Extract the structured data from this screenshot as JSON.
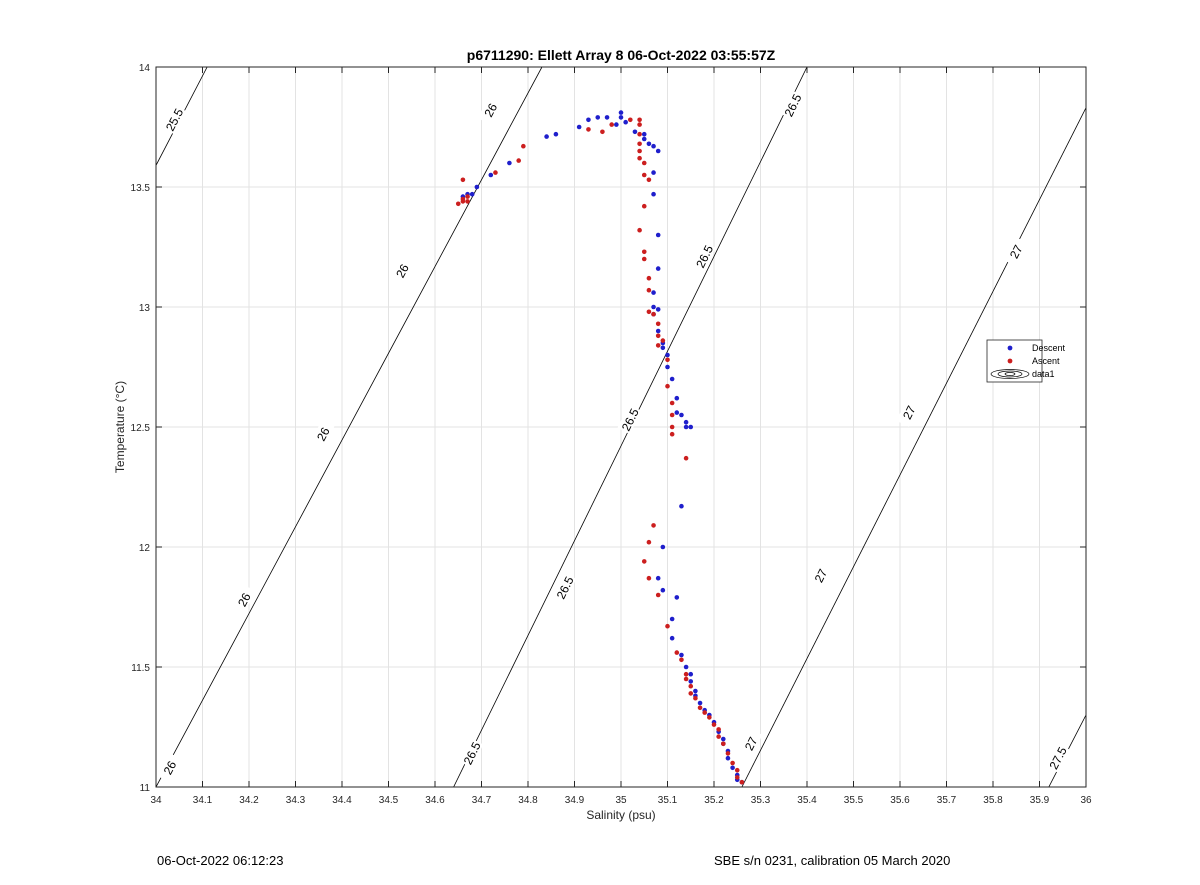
{
  "chart_data": {
    "type": "scatter",
    "title": "p6711290: Ellett Array 8 06-Oct-2022 03:55:57Z",
    "xlabel": "Salinity (psu)",
    "ylabel": "Temperature (°C)",
    "xlim": [
      34,
      36
    ],
    "ylim": [
      11,
      14
    ],
    "grid": true,
    "legend_placement": "right",
    "x_ticks": [
      "34",
      "34.1",
      "34.2",
      "34.3",
      "34.4",
      "34.5",
      "34.6",
      "34.7",
      "34.8",
      "34.9",
      "35",
      "35.1",
      "35.2",
      "35.3",
      "35.4",
      "35.5",
      "35.6",
      "35.7",
      "35.8",
      "35.9",
      "36"
    ],
    "y_ticks": [
      "11",
      "11.5",
      "12",
      "12.5",
      "13",
      "13.5",
      "14"
    ],
    "legend": [
      {
        "label": "Descent",
        "color": "#1f1fcc",
        "marker": "dot"
      },
      {
        "label": "Ascent",
        "color": "#cc1f1f",
        "marker": "dot"
      },
      {
        "label": "data1",
        "color": "#000000",
        "marker": "contour"
      }
    ],
    "contours": [
      {
        "label": "25.5",
        "points": [
          [
            34.0,
            13.59
          ],
          [
            34.11,
            14.0
          ]
        ],
        "label_positions": [
          [
            34.04,
            13.78
          ]
        ]
      },
      {
        "label": "26",
        "points": [
          [
            34.0,
            11.0
          ],
          [
            34.83,
            14.0
          ]
        ],
        "label_positions": [
          [
            34.03,
            11.08
          ],
          [
            34.19,
            11.78
          ],
          [
            34.36,
            12.47
          ],
          [
            34.53,
            13.15
          ],
          [
            34.72,
            13.82
          ]
        ]
      },
      {
        "label": "26.5",
        "points": [
          [
            34.64,
            11.0
          ],
          [
            35.4,
            14.0
          ]
        ],
        "label_positions": [
          [
            34.68,
            11.14
          ],
          [
            34.88,
            11.83
          ],
          [
            35.02,
            12.53
          ],
          [
            35.18,
            13.21
          ],
          [
            35.37,
            13.84
          ]
        ]
      },
      {
        "label": "27",
        "points": [
          [
            35.26,
            11.0
          ],
          [
            36.0,
            13.83
          ]
        ],
        "label_positions": [
          [
            35.28,
            11.18
          ],
          [
            35.43,
            11.88
          ],
          [
            35.62,
            12.56
          ],
          [
            35.85,
            13.23
          ]
        ]
      },
      {
        "label": "27.5",
        "points": [
          [
            35.92,
            11.0
          ],
          [
            36.0,
            11.3
          ]
        ],
        "label_positions": [
          [
            35.94,
            11.12
          ]
        ]
      }
    ],
    "series": [
      {
        "name": "Descent",
        "color": "#1f1fcc",
        "points": [
          [
            34.66,
            13.46
          ],
          [
            34.67,
            13.47
          ],
          [
            34.68,
            13.47
          ],
          [
            34.69,
            13.5
          ],
          [
            34.72,
            13.55
          ],
          [
            34.76,
            13.6
          ],
          [
            34.84,
            13.71
          ],
          [
            34.86,
            13.72
          ],
          [
            34.91,
            13.75
          ],
          [
            34.93,
            13.78
          ],
          [
            34.95,
            13.79
          ],
          [
            34.97,
            13.79
          ],
          [
            34.99,
            13.76
          ],
          [
            35.0,
            13.81
          ],
          [
            35.0,
            13.79
          ],
          [
            35.01,
            13.77
          ],
          [
            35.03,
            13.73
          ],
          [
            35.05,
            13.72
          ],
          [
            35.05,
            13.7
          ],
          [
            35.06,
            13.68
          ],
          [
            35.07,
            13.67
          ],
          [
            35.08,
            13.65
          ],
          [
            35.07,
            13.56
          ],
          [
            35.07,
            13.47
          ],
          [
            35.08,
            13.3
          ],
          [
            35.08,
            13.16
          ],
          [
            35.07,
            13.06
          ],
          [
            35.07,
            13.0
          ],
          [
            35.08,
            12.99
          ],
          [
            35.07,
            12.97
          ],
          [
            35.08,
            12.9
          ],
          [
            35.09,
            12.85
          ],
          [
            35.09,
            12.83
          ],
          [
            35.1,
            12.8
          ],
          [
            35.1,
            12.75
          ],
          [
            35.11,
            12.7
          ],
          [
            35.12,
            12.62
          ],
          [
            35.12,
            12.56
          ],
          [
            35.13,
            12.55
          ],
          [
            35.14,
            12.52
          ],
          [
            35.15,
            12.5
          ],
          [
            35.14,
            12.5
          ],
          [
            35.13,
            12.17
          ],
          [
            35.09,
            12.0
          ],
          [
            35.08,
            11.87
          ],
          [
            35.09,
            11.82
          ],
          [
            35.12,
            11.79
          ],
          [
            35.11,
            11.7
          ],
          [
            35.11,
            11.62
          ],
          [
            35.13,
            11.55
          ],
          [
            35.14,
            11.5
          ],
          [
            35.15,
            11.47
          ],
          [
            35.15,
            11.44
          ],
          [
            35.16,
            11.4
          ],
          [
            35.16,
            11.38
          ],
          [
            35.17,
            11.35
          ],
          [
            35.18,
            11.32
          ],
          [
            35.19,
            11.3
          ],
          [
            35.2,
            11.27
          ],
          [
            35.21,
            11.23
          ],
          [
            35.22,
            11.2
          ],
          [
            35.22,
            11.18
          ],
          [
            35.23,
            11.15
          ],
          [
            35.23,
            11.12
          ],
          [
            35.24,
            11.08
          ],
          [
            35.25,
            11.05
          ],
          [
            35.25,
            11.03
          ],
          [
            35.26,
            11.02
          ]
        ]
      },
      {
        "name": "Ascent",
        "color": "#cc1f1f",
        "points": [
          [
            34.65,
            13.43
          ],
          [
            34.66,
            13.44
          ],
          [
            34.66,
            13.45
          ],
          [
            34.67,
            13.44
          ],
          [
            34.66,
            13.53
          ],
          [
            34.67,
            13.46
          ],
          [
            34.73,
            13.56
          ],
          [
            34.78,
            13.61
          ],
          [
            34.79,
            13.67
          ],
          [
            34.93,
            13.74
          ],
          [
            34.96,
            13.73
          ],
          [
            34.98,
            13.76
          ],
          [
            35.02,
            13.78
          ],
          [
            35.04,
            13.78
          ],
          [
            35.04,
            13.76
          ],
          [
            35.04,
            13.72
          ],
          [
            35.04,
            13.68
          ],
          [
            35.04,
            13.65
          ],
          [
            35.04,
            13.62
          ],
          [
            35.05,
            13.6
          ],
          [
            35.05,
            13.55
          ],
          [
            35.06,
            13.53
          ],
          [
            35.05,
            13.42
          ],
          [
            35.04,
            13.32
          ],
          [
            35.05,
            13.23
          ],
          [
            35.05,
            13.2
          ],
          [
            35.06,
            13.12
          ],
          [
            35.06,
            13.07
          ],
          [
            35.06,
            12.98
          ],
          [
            35.07,
            12.97
          ],
          [
            35.08,
            12.93
          ],
          [
            35.08,
            12.88
          ],
          [
            35.09,
            12.86
          ],
          [
            35.08,
            12.84
          ],
          [
            35.1,
            12.78
          ],
          [
            35.1,
            12.67
          ],
          [
            35.11,
            12.6
          ],
          [
            35.11,
            12.55
          ],
          [
            35.11,
            12.5
          ],
          [
            35.11,
            12.47
          ],
          [
            35.14,
            12.37
          ],
          [
            35.07,
            12.09
          ],
          [
            35.06,
            12.02
          ],
          [
            35.05,
            11.94
          ],
          [
            35.06,
            11.87
          ],
          [
            35.08,
            11.8
          ],
          [
            35.1,
            11.67
          ],
          [
            35.12,
            11.56
          ],
          [
            35.13,
            11.53
          ],
          [
            35.14,
            11.47
          ],
          [
            35.14,
            11.45
          ],
          [
            35.15,
            11.42
          ],
          [
            35.15,
            11.39
          ],
          [
            35.16,
            11.37
          ],
          [
            35.17,
            11.33
          ],
          [
            35.18,
            11.31
          ],
          [
            35.19,
            11.29
          ],
          [
            35.2,
            11.26
          ],
          [
            35.21,
            11.24
          ],
          [
            35.21,
            11.21
          ],
          [
            35.22,
            11.18
          ],
          [
            35.23,
            11.14
          ],
          [
            35.24,
            11.1
          ],
          [
            35.25,
            11.07
          ],
          [
            35.25,
            11.04
          ],
          [
            35.26,
            11.02
          ]
        ]
      }
    ]
  },
  "footer": {
    "left": "06-Oct-2022 06:12:23",
    "right": "SBE s/n 0231, calibration 05 March 2020"
  }
}
